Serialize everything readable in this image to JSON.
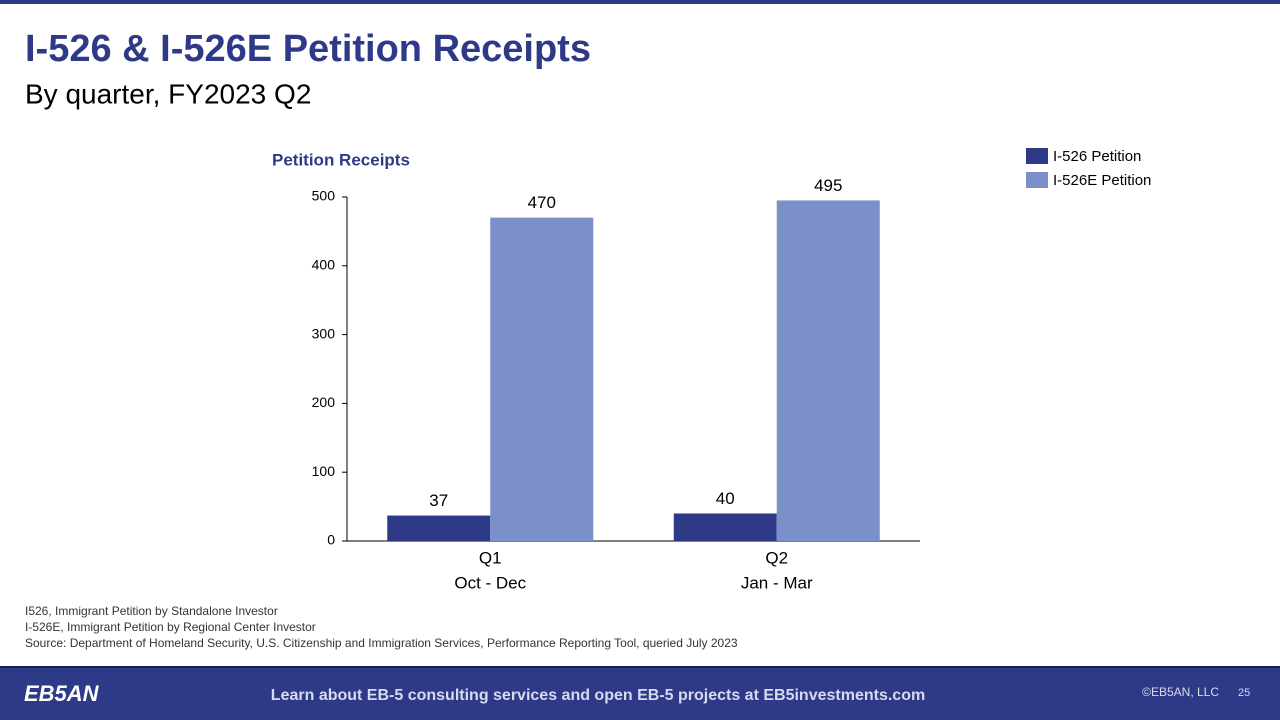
{
  "chart_data": {
    "type": "bar",
    "title": "I-526 & I-526E Petition Receipts",
    "subtitle": "By quarter, FY2023 Q2",
    "y_label": "Petition Receipts",
    "categories": [
      "Q1",
      "Q2"
    ],
    "category_periods": [
      "Oct - Dec",
      "Jan - Mar"
    ],
    "series": [
      {
        "name": "I-526 Petition",
        "color": "#2e3a87",
        "values": [
          37,
          40
        ]
      },
      {
        "name": "I-526E Petition",
        "color": "#7b8fc8",
        "values": [
          470,
          495
        ]
      }
    ],
    "ylim": [
      0,
      500
    ],
    "yticks": [
      0,
      100,
      200,
      300,
      400,
      500
    ],
    "grid": false,
    "legend": "top-right"
  },
  "notes": [
    "I526, Immigrant Petition by Standalone Investor",
    "I-526E, Immigrant Petition by Regional Center Investor",
    "Source: Department of Homeland Security, U.S. Citizenship and Immigration Services, Performance Reporting Tool, queried July 2023"
  ],
  "footer": {
    "logo": "EB5AN",
    "message": "Learn about EB-5 consulting services and open EB-5 projects at EB5investments.com",
    "copyright": "©EB5AN, LLC",
    "page": 25
  }
}
